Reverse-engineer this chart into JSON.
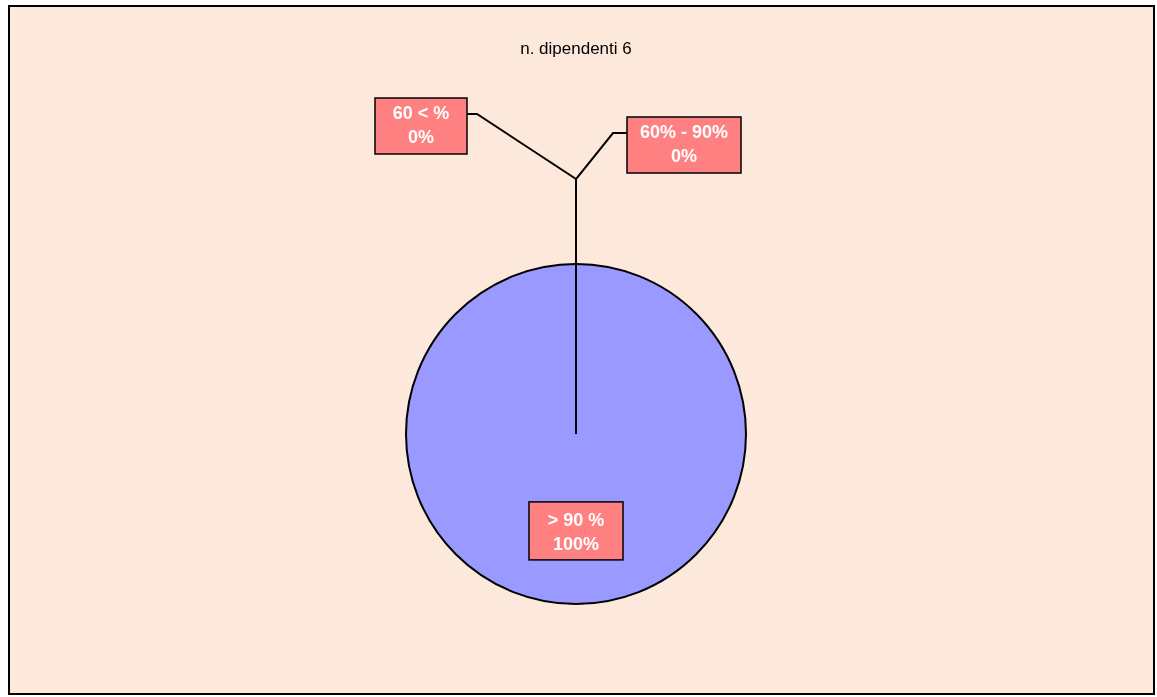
{
  "chart_data": {
    "type": "pie",
    "title": "n. dipendenti 6",
    "categories": [
      "60 < %",
      "60% - 90%",
      "> 90  %"
    ],
    "values": [
      0,
      0,
      100
    ],
    "colors": [
      "#993366",
      "#ffffcc",
      "#9999ff"
    ],
    "value_labels": [
      "0%",
      "0%",
      "100%"
    ]
  }
}
